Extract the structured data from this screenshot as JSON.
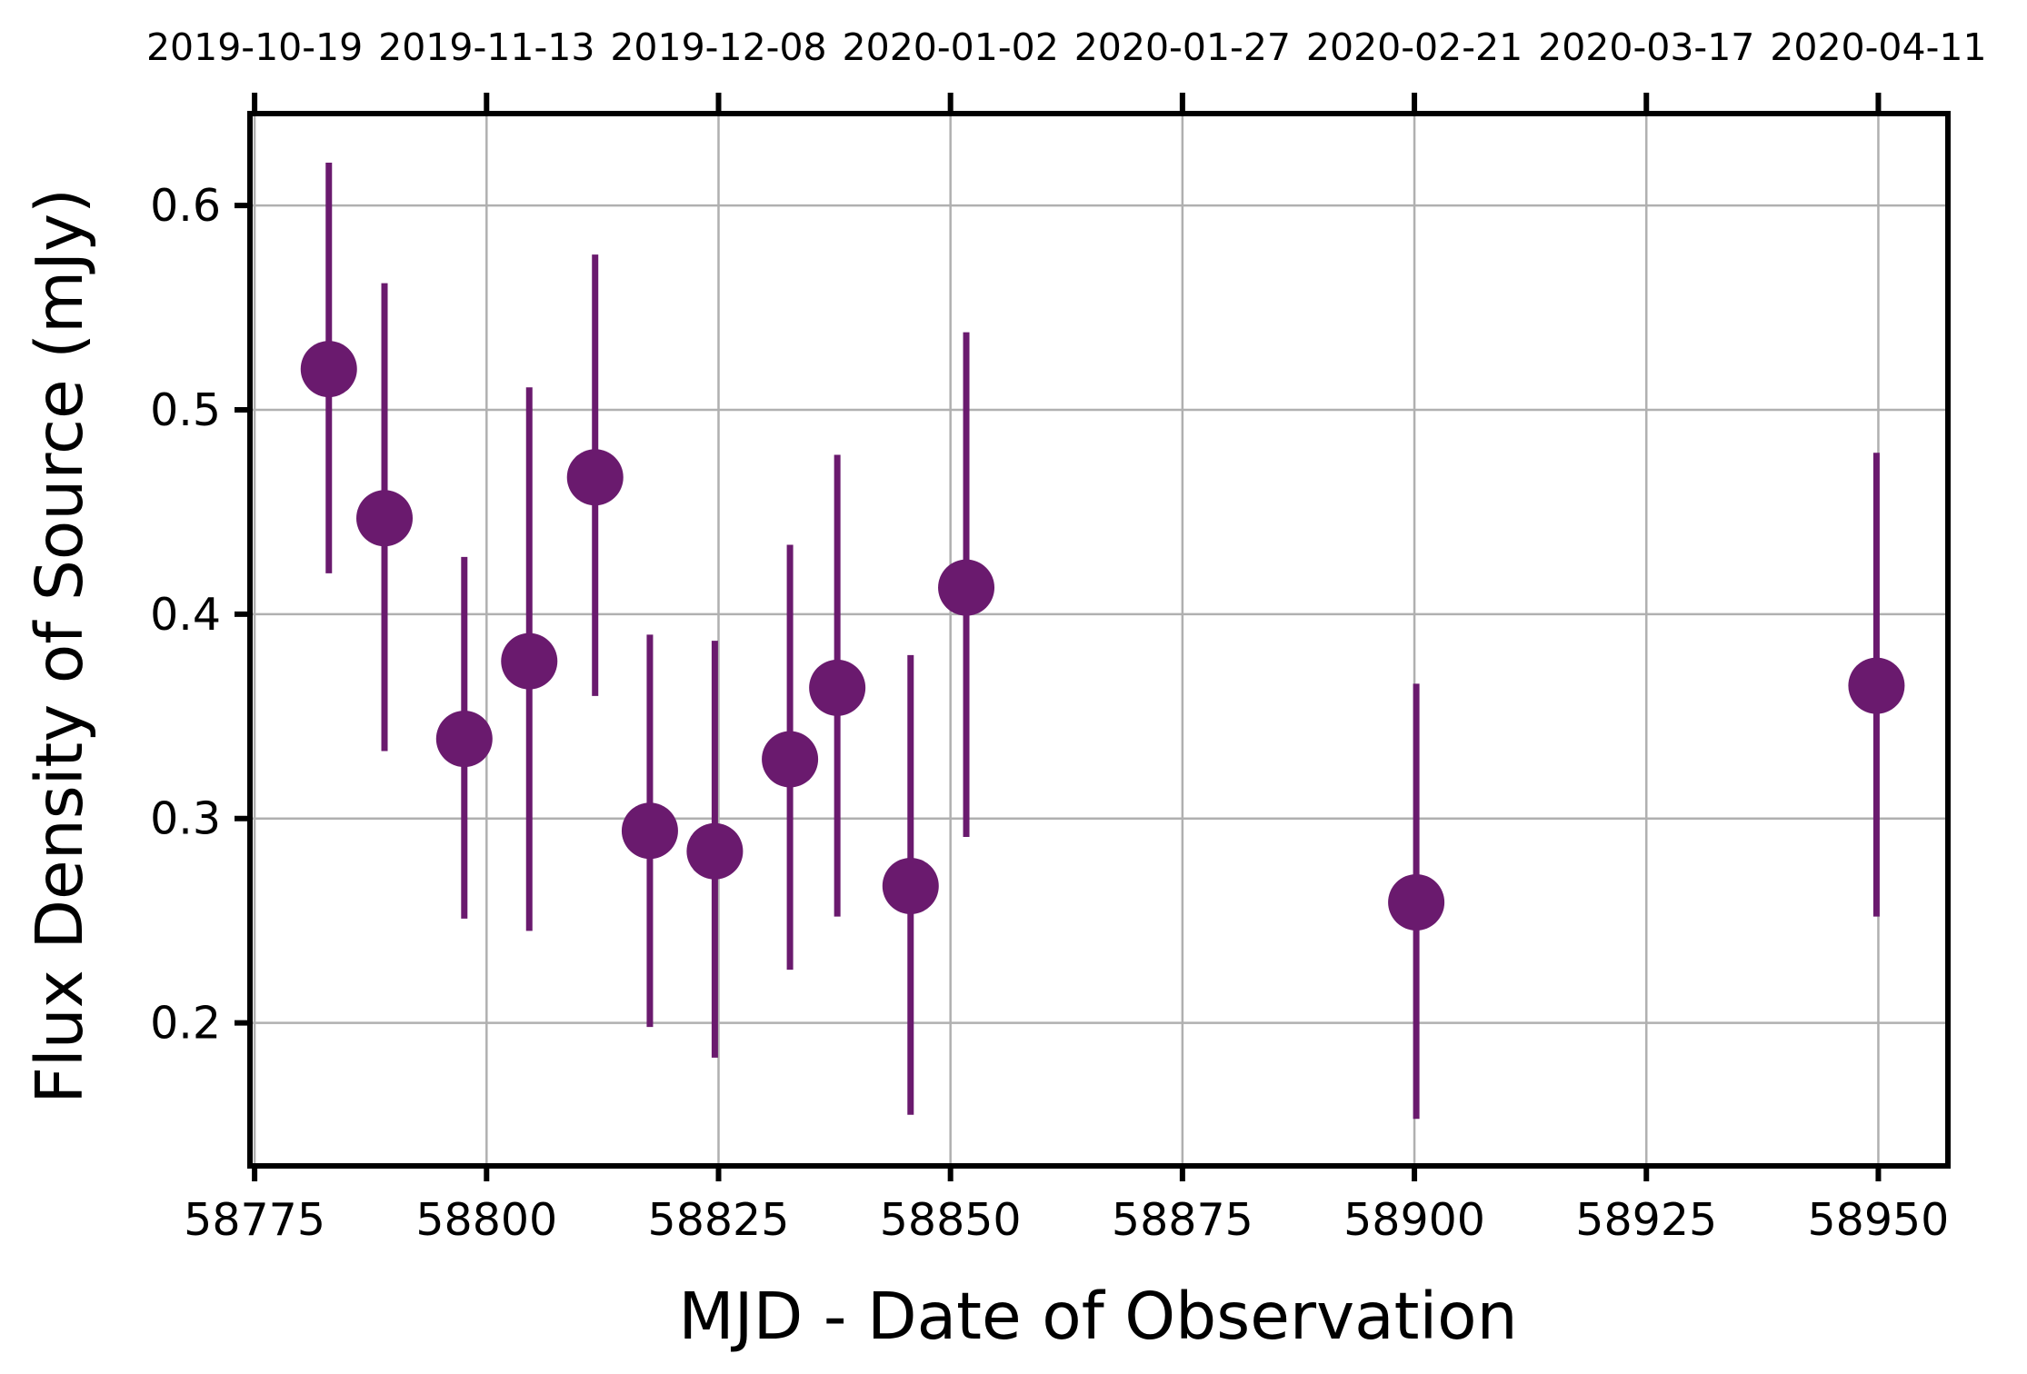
{
  "chart_data": {
    "type": "scatter",
    "xlabel": "MJD - Date of Observation",
    "ylabel": "Flux Density of Source (mJy)",
    "xlim": [
      58774.5,
      58957.5
    ],
    "ylim": [
      0.13,
      0.645
    ],
    "x_ticks": [
      58775,
      58800,
      58825,
      58850,
      58875,
      58900,
      58925,
      58950
    ],
    "x_tick_labels": [
      "58775",
      "58800",
      "58825",
      "58850",
      "58875",
      "58900",
      "58925",
      "58950"
    ],
    "y_ticks": [
      0.2,
      0.3,
      0.4,
      0.5,
      0.6
    ],
    "y_tick_labels": [
      "0.2",
      "0.3",
      "0.4",
      "0.5",
      "0.6"
    ],
    "top_axis_ticks": [
      58775,
      58800,
      58825,
      58850,
      58875,
      58900,
      58925,
      58950
    ],
    "top_axis_labels": [
      "2019-10-19",
      "2019-11-13",
      "2019-12-08",
      "2020-01-02",
      "2020-01-27",
      "2020-02-21",
      "2020-03-17",
      "2020-04-11"
    ],
    "grid": true,
    "marker_color": "#6a1a6e",
    "series": [
      {
        "x": [
          58783.0,
          58789.0,
          58797.6,
          58804.6,
          58811.7,
          58817.6,
          58824.6,
          58832.7,
          58837.8,
          58845.7,
          58851.7,
          58900.2,
          58949.8
        ],
        "y": [
          0.52,
          0.447,
          0.339,
          0.377,
          0.467,
          0.294,
          0.284,
          0.329,
          0.364,
          0.267,
          0.413,
          0.259,
          0.365
        ],
        "y_err_low": [
          0.42,
          0.333,
          0.251,
          0.245,
          0.36,
          0.198,
          0.183,
          0.226,
          0.252,
          0.155,
          0.291,
          0.153,
          0.252
        ],
        "y_err_high": [
          0.621,
          0.562,
          0.428,
          0.511,
          0.576,
          0.39,
          0.387,
          0.434,
          0.478,
          0.38,
          0.538,
          0.366,
          0.479
        ]
      }
    ]
  }
}
